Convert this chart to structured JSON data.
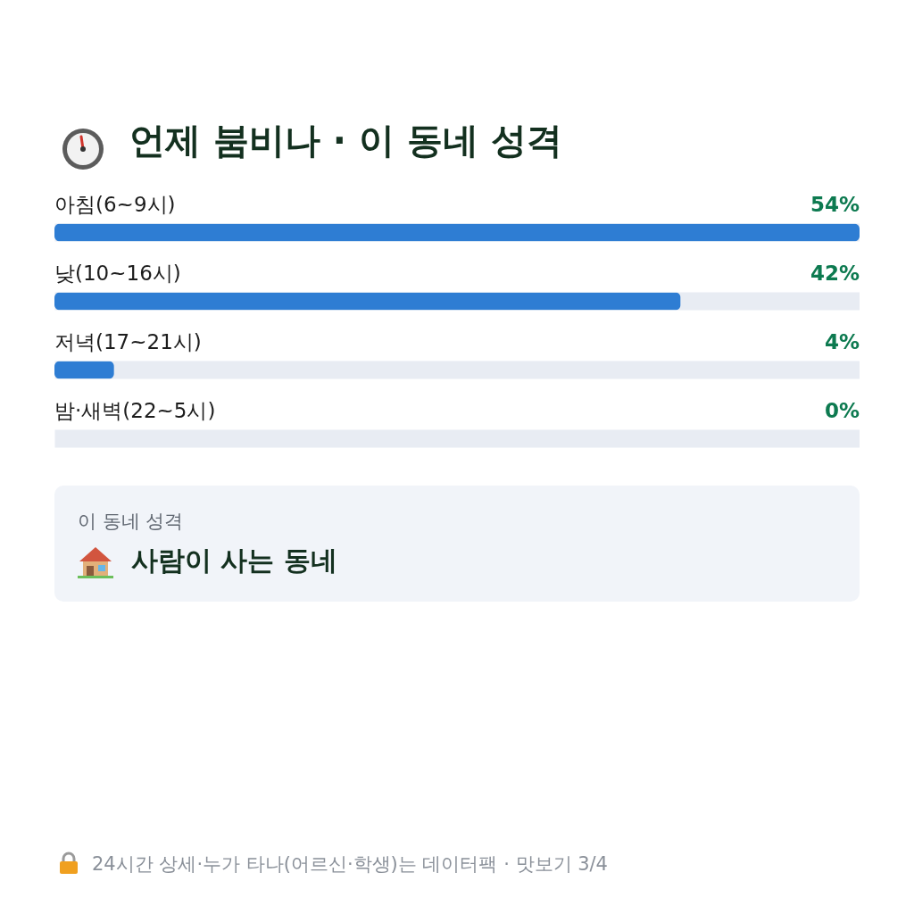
{
  "chart_data": {
    "type": "bar",
    "orientation": "horizontal",
    "title": "언제 붐비나 · 이 동네 성격",
    "categories": [
      "아침(6~9시)",
      "낮(10~16시)",
      "저녁(17~21시)",
      "밤·새벽(22~5시)"
    ],
    "values": [
      54,
      42,
      4,
      0
    ],
    "color": "#2e7dd3",
    "grid": "y",
    "value_labels": [
      "54%",
      "42%",
      "4%",
      "0%"
    ],
    "annotations": [
      "이 동네 성격",
      "사람이 사는 동네",
      "24시간 상세·누가 타나(어르신·학생)는 데이터팩 · 맛보기 3/4"
    ]
  }
}
